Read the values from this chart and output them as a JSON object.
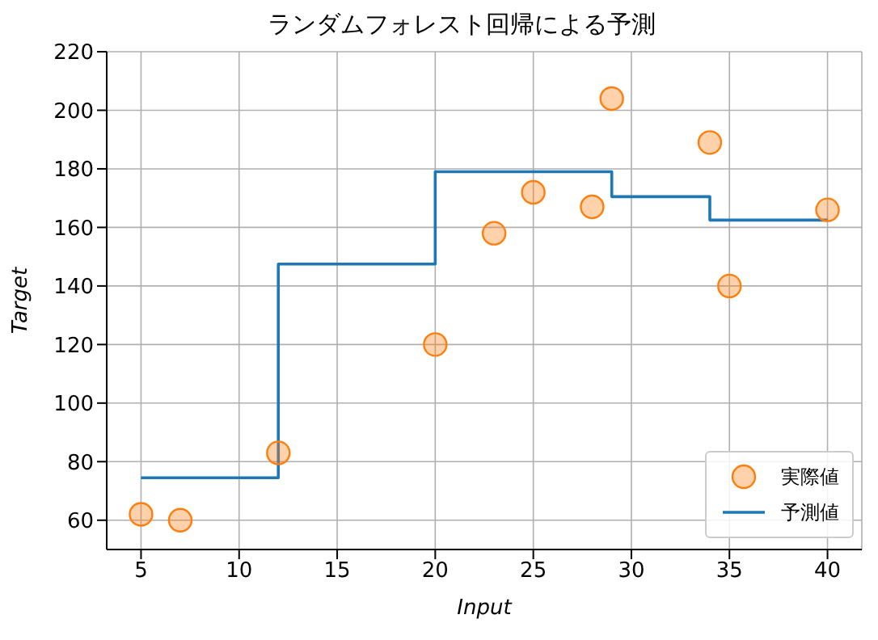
{
  "chart_data": {
    "type": "scatter",
    "title": "ランダムフォレスト回帰による予測",
    "xlabel": "Input",
    "ylabel": "Target",
    "xlim": [
      3.25,
      41.75
    ],
    "xticks": [
      5,
      10,
      15,
      20,
      25,
      30,
      35,
      40
    ],
    "ylim": [
      50,
      220
    ],
    "yticks": [
      60,
      80,
      100,
      120,
      140,
      160,
      180,
      200,
      220
    ],
    "grid": true,
    "legend": "bottom right",
    "series": [
      {
        "name": "実際値",
        "marker": "circle",
        "color": "#ff7f0e",
        "x": [
          5,
          7,
          12,
          20,
          23,
          25,
          28,
          29,
          34,
          35,
          40
        ],
        "values": [
          62,
          60,
          83,
          120,
          158,
          172,
          167,
          204,
          189,
          140,
          166
        ]
      },
      {
        "name": "予測値",
        "type": "step",
        "color": "#1f77b4",
        "x": [
          5,
          12,
          20,
          29,
          34,
          40
        ],
        "values": [
          74.5,
          147.5,
          179,
          170.5,
          162.5,
          162.5
        ]
      }
    ]
  }
}
